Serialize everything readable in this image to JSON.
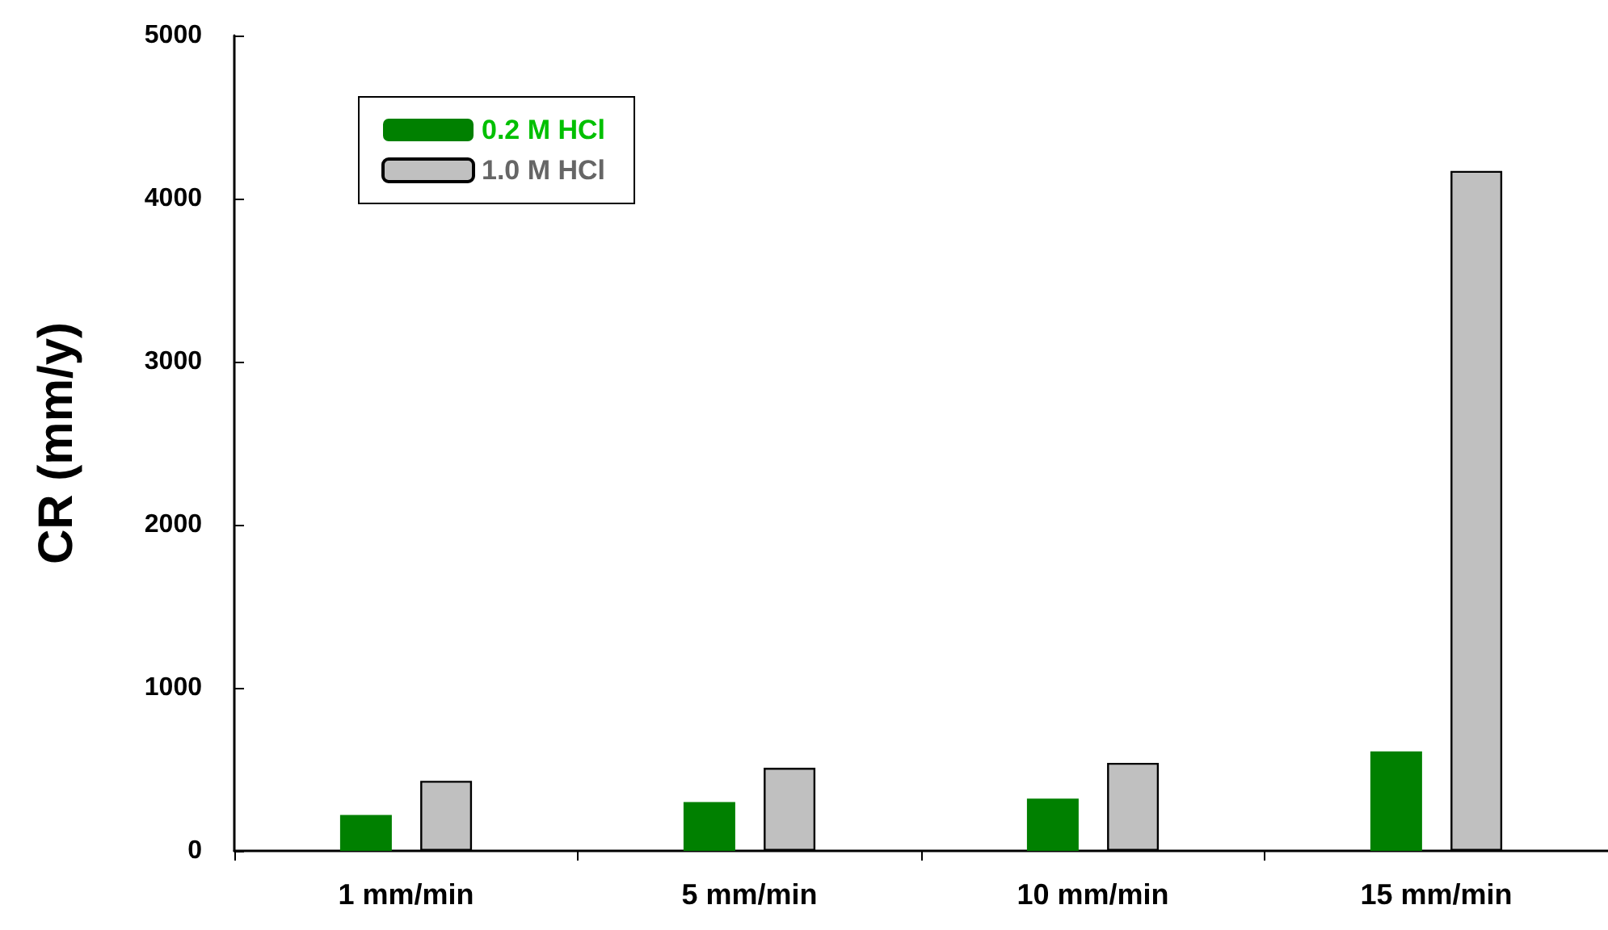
{
  "chart_data": {
    "type": "bar",
    "ylabel": "CR (mm/y)",
    "categories": [
      "1 mm/min",
      "5 mm/min",
      "10 mm/min",
      "15 mm/min"
    ],
    "series": [
      {
        "name": "0.2 M HCl",
        "color": "#008000",
        "values": [
          220,
          300,
          320,
          610
        ]
      },
      {
        "name": "1.0 M HCl",
        "color": "#c0c0c0",
        "values": [
          430,
          510,
          540,
          4170
        ]
      }
    ],
    "ylim": [
      0,
      5000
    ],
    "yticks": [
      0,
      1000,
      2000,
      3000,
      4000,
      5000
    ],
    "grid": false,
    "legend": "top left"
  }
}
